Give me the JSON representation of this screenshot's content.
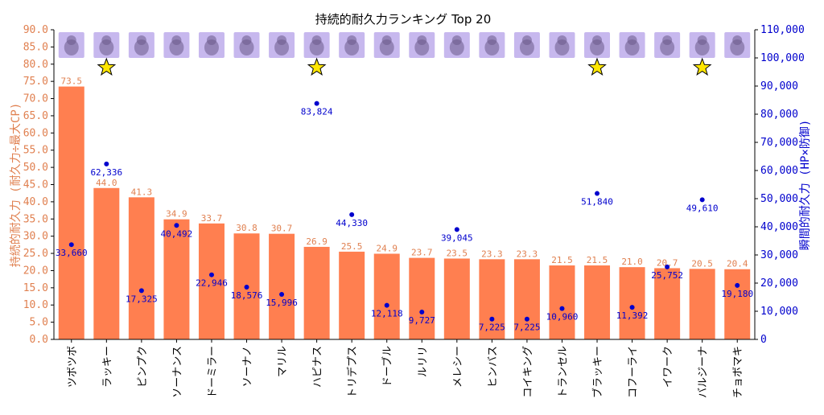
{
  "colors": {
    "bar": "#FF7F50",
    "dot": "#0000CD",
    "left_axis": "#E08050",
    "right_axis": "#0000CD",
    "star_fill": "#FFE600",
    "thumb_bg": "#C7B8EE"
  },
  "chart_data": {
    "type": "bar",
    "title": "持続的耐久力ランキング Top 20",
    "categories": [
      "ツボツボ",
      "ラッキー",
      "ピンプク",
      "ソーナンス",
      "ドーミラー",
      "ソーナノ",
      "マリル",
      "ハピナス",
      "トリデプス",
      "ドーブル",
      "ルリリ",
      "メレシー",
      "ヒンバス",
      "コイキング",
      "トランセル",
      "ブラッキー",
      "コフーライ",
      "イワーク",
      "バルジーナ",
      "チョボマキ"
    ],
    "series": [
      {
        "name": "持続的耐久力 (耐久力÷最大CP)",
        "type": "bar",
        "axis": "left",
        "values": [
          73.5,
          44.0,
          41.3,
          34.9,
          33.7,
          30.8,
          30.7,
          26.9,
          25.5,
          24.9,
          23.7,
          23.5,
          23.3,
          23.3,
          21.5,
          21.5,
          21.0,
          20.7,
          20.5,
          20.4
        ],
        "labels": [
          "73.5",
          "44.0",
          "41.3",
          "34.9",
          "33.7",
          "30.8",
          "30.7",
          "26.9",
          "25.5",
          "24.9",
          "23.7",
          "23.5",
          "23.3",
          "23.3",
          "21.5",
          "21.5",
          "21.0",
          "20.7",
          "20.5",
          "20.4"
        ]
      },
      {
        "name": "瞬間的耐久力 (HP×防御)",
        "type": "scatter",
        "axis": "right",
        "values": [
          33660,
          62336,
          17325,
          40492,
          22946,
          18576,
          15996,
          83824,
          44330,
          12118,
          9727,
          39045,
          7225,
          7225,
          10960,
          51840,
          11392,
          25752,
          49610,
          19180
        ],
        "labels": [
          "33,660",
          "62,336",
          "17,325",
          "40,492",
          "22,946",
          "18,576",
          "15,996",
          "83,824",
          "44,330",
          "12,118",
          "9,727",
          "39,045",
          "7,225",
          "7,225",
          "10,960",
          "51,840",
          "11,392",
          "25,752",
          "49,610",
          "19,180"
        ]
      }
    ],
    "ylabel_left": "持続的耐久力 (耐久力÷最大CP)",
    "ylabel_right": "瞬間的耐久力 (HP×防御)",
    "ylim_left": [
      0,
      90
    ],
    "ylim_right": [
      0,
      110000
    ],
    "yticks_left": [
      "0.0",
      "5.0",
      "10.0",
      "15.0",
      "20.0",
      "25.0",
      "30.0",
      "35.0",
      "40.0",
      "45.0",
      "50.0",
      "55.0",
      "60.0",
      "65.0",
      "70.0",
      "75.0",
      "80.0",
      "85.0",
      "90.0"
    ],
    "yticks_right": [
      "0",
      "10,000",
      "20,000",
      "30,000",
      "40,000",
      "50,000",
      "60,000",
      "70,000",
      "80,000",
      "90,000",
      "100,000",
      "110,000"
    ],
    "starred": [
      false,
      true,
      false,
      false,
      false,
      false,
      false,
      true,
      false,
      false,
      false,
      false,
      false,
      false,
      false,
      true,
      false,
      false,
      true,
      false
    ],
    "thumbnails": [
      "tsubotsubo-icon",
      "lucky-icon",
      "pinpuku-icon",
      "sonans-icon",
      "domirror-icon",
      "sonano-icon",
      "maril-icon",
      "happinas-icon",
      "torideps-icon",
      "doble-icon",
      "ruriri-icon",
      "melecie-icon",
      "hinbass-icon",
      "koiking-icon",
      "trancell-icon",
      "blacky-icon",
      "kofurai-icon",
      "iwark-icon",
      "vullaby-icon",
      "chobomaki-icon"
    ],
    "grid": false,
    "legend": "none"
  }
}
